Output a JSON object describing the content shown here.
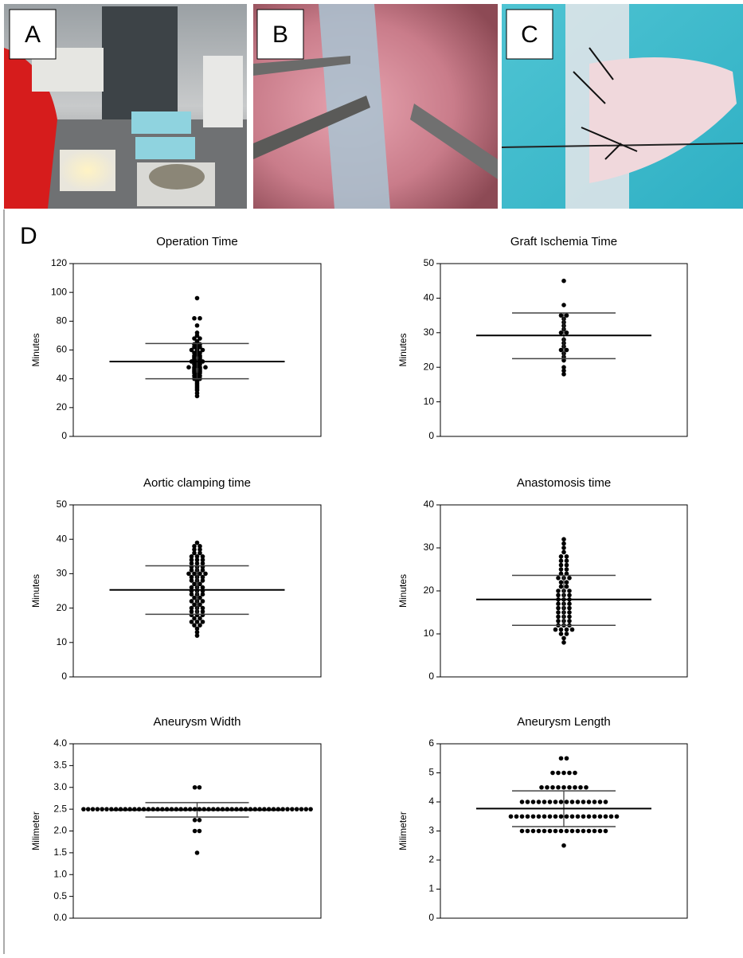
{
  "panel_labels": [
    "A",
    "B",
    "C",
    "D"
  ],
  "chart_data": [
    {
      "type": "dotplot",
      "title": "Operation Time",
      "ylabel": "Minutes",
      "ylim": [
        0,
        120
      ],
      "yticks": [
        0,
        20,
        40,
        60,
        80,
        100,
        120
      ],
      "mean": 52,
      "sd_lower": 40,
      "sd_upper": 64.5,
      "values": [
        96,
        82,
        82,
        77,
        72,
        70,
        68,
        68,
        66,
        65,
        64,
        64,
        63,
        62,
        62,
        61,
        60,
        60,
        60,
        59,
        58,
        58,
        57,
        56,
        56,
        55,
        55,
        54,
        54,
        53,
        53,
        52,
        52,
        52,
        51,
        50,
        50,
        49,
        48,
        48,
        48,
        48,
        47,
        47,
        46,
        46,
        45,
        45,
        44,
        44,
        43,
        42,
        42,
        41,
        40,
        40,
        39,
        38,
        37,
        36,
        35,
        34,
        33,
        32,
        30,
        28
      ]
    },
    {
      "type": "dotplot",
      "title": "Graft Ischemia Time",
      "ylabel": "Minutes",
      "ylim": [
        0,
        50
      ],
      "yticks": [
        0,
        10,
        20,
        30,
        40,
        50
      ],
      "mean": 29.2,
      "sd_lower": 22.5,
      "sd_upper": 35.7,
      "values": [
        45,
        38,
        35,
        35,
        34,
        33,
        32,
        31,
        30,
        30,
        28,
        27,
        26,
        25,
        25,
        24,
        23,
        22,
        20,
        19,
        18
      ]
    },
    {
      "type": "dotplot",
      "title": "Aortic clamping time",
      "ylabel": "Minutes",
      "ylim": [
        0,
        50
      ],
      "yticks": [
        0,
        10,
        20,
        30,
        40,
        50
      ],
      "mean": 25.3,
      "sd_lower": 18.2,
      "sd_upper": 32.3,
      "values": [
        39,
        38,
        38,
        37,
        37,
        36,
        36,
        35,
        35,
        35,
        34,
        34,
        34,
        33,
        33,
        33,
        32,
        32,
        32,
        31,
        31,
        31,
        30,
        30,
        30,
        30,
        29,
        29,
        29,
        28,
        28,
        28,
        27,
        27,
        26,
        26,
        26,
        25,
        25,
        25,
        24,
        24,
        24,
        23,
        23,
        22,
        22,
        22,
        21,
        21,
        20,
        20,
        20,
        19,
        19,
        19,
        18,
        18,
        18,
        17,
        17,
        16,
        16,
        16,
        15,
        15,
        14,
        13,
        12
      ]
    },
    {
      "type": "dotplot",
      "title": "Anastomosis time",
      "ylabel": "Minutes",
      "ylim": [
        0,
        40
      ],
      "yticks": [
        0,
        10,
        20,
        30,
        40
      ],
      "mean": 18,
      "sd_lower": 12,
      "sd_upper": 23.6,
      "values": [
        32,
        31,
        30,
        29,
        28,
        28,
        27,
        27,
        26,
        26,
        25,
        25,
        24,
        24,
        23,
        23,
        23,
        22,
        22,
        21,
        21,
        20,
        20,
        20,
        19,
        19,
        19,
        18,
        18,
        18,
        17,
        17,
        17,
        16,
        16,
        16,
        15,
        15,
        15,
        14,
        14,
        14,
        13,
        13,
        13,
        12,
        12,
        12,
        11,
        11,
        11,
        11,
        10,
        10,
        9,
        8
      ]
    },
    {
      "type": "dotplot",
      "title": "Aneurysm Width",
      "ylabel": "Milimeter",
      "ylim": [
        0,
        4
      ],
      "yticks": [
        {
          "value": 0,
          "label": "0.0"
        },
        0.5,
        {
          "value": 1,
          "label": "1.0"
        },
        1.5,
        {
          "value": 2,
          "label": "2.0"
        },
        2.5,
        {
          "value": 3,
          "label": "3.0"
        },
        3.5,
        {
          "value": 4,
          "label": "4.0"
        }
      ],
      "mean": 2.48,
      "sd_lower": 2.32,
      "sd_upper": 2.65,
      "values": [
        3,
        3,
        2.5,
        2.5,
        2.5,
        2.5,
        2.5,
        2.5,
        2.5,
        2.5,
        2.5,
        2.5,
        2.5,
        2.5,
        2.5,
        2.5,
        2.5,
        2.5,
        2.5,
        2.5,
        2.5,
        2.5,
        2.5,
        2.5,
        2.5,
        2.5,
        2.5,
        2.5,
        2.5,
        2.5,
        2.5,
        2.5,
        2.5,
        2.5,
        2.5,
        2.5,
        2.5,
        2.5,
        2.5,
        2.5,
        2.5,
        2.5,
        2.5,
        2.5,
        2.5,
        2.5,
        2.5,
        2.5,
        2.5,
        2.5,
        2.5,
        2.5,
        2.25,
        2.25,
        2,
        2,
        1.5
      ]
    },
    {
      "type": "dotplot",
      "title": "Aneurysm Length",
      "ylabel": "Milimeter",
      "ylim": [
        0,
        6
      ],
      "yticks": [
        0,
        1,
        2,
        3,
        4,
        5,
        6
      ],
      "mean": 3.77,
      "sd_lower": 3.15,
      "sd_upper": 4.38,
      "values": [
        5.5,
        5.5,
        5,
        5,
        5,
        5,
        5,
        4.5,
        4.5,
        4.5,
        4.5,
        4.5,
        4.5,
        4.5,
        4.5,
        4.5,
        4,
        4,
        4,
        4,
        4,
        4,
        4,
        4,
        4,
        4,
        4,
        4,
        4,
        4,
        4,
        4,
        3.5,
        3.5,
        3.5,
        3.5,
        3.5,
        3.5,
        3.5,
        3.5,
        3.5,
        3.5,
        3.5,
        3.5,
        3.5,
        3.5,
        3.5,
        3.5,
        3.5,
        3.5,
        3.5,
        3.5,
        3,
        3,
        3,
        3,
        3,
        3,
        3,
        3,
        3,
        3,
        3,
        3,
        3,
        3,
        3,
        3,
        2.5
      ]
    }
  ]
}
